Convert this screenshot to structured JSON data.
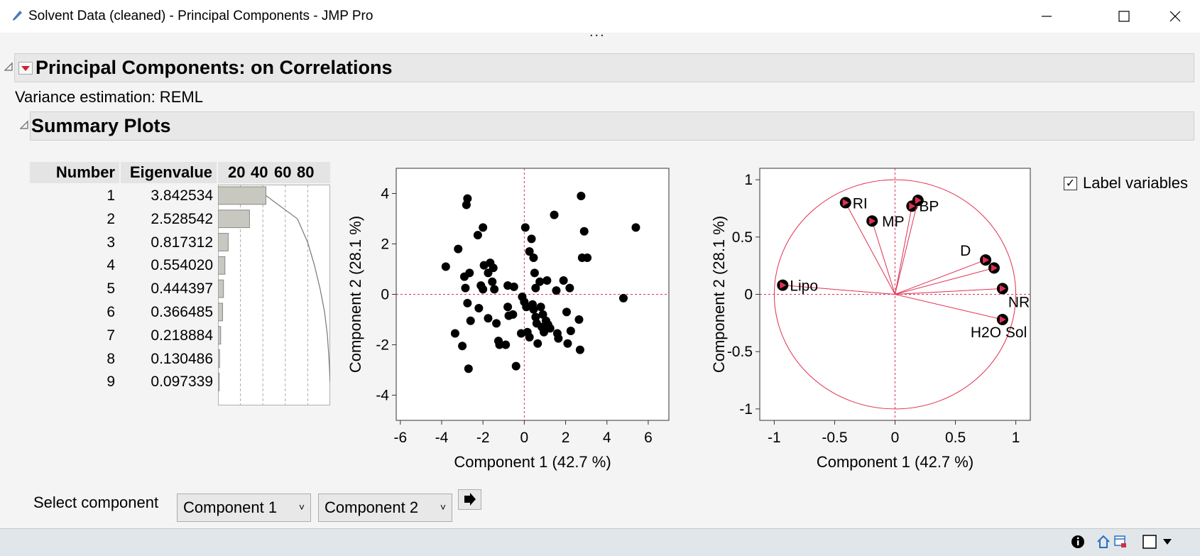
{
  "window": {
    "title": "Solvent Data (cleaned) - Principal Components - JMP Pro",
    "grip": "..."
  },
  "report": {
    "title": "Principal Components: on Correlations",
    "variance_estimation": "Variance estimation: REML",
    "summary_title": "Summary Plots"
  },
  "eigen_table": {
    "headers": {
      "number": "Number",
      "eigenvalue": "Eigenvalue"
    },
    "bar_ticks": [
      "20",
      "40",
      "60",
      "80"
    ],
    "rows": [
      {
        "number": "1",
        "eigenvalue": "3.842534",
        "percent": 42.7,
        "cum_percent": 42.7
      },
      {
        "number": "2",
        "eigenvalue": "2.528542",
        "percent": 28.1,
        "cum_percent": 70.8
      },
      {
        "number": "3",
        "eigenvalue": "0.817312",
        "percent": 9.1,
        "cum_percent": 79.9
      },
      {
        "number": "4",
        "eigenvalue": "0.554020",
        "percent": 6.2,
        "cum_percent": 86.0
      },
      {
        "number": "5",
        "eigenvalue": "0.444397",
        "percent": 4.9,
        "cum_percent": 91.0
      },
      {
        "number": "6",
        "eigenvalue": "0.366485",
        "percent": 4.1,
        "cum_percent": 95.0
      },
      {
        "number": "7",
        "eigenvalue": "0.218884",
        "percent": 2.4,
        "cum_percent": 97.5
      },
      {
        "number": "8",
        "eigenvalue": "0.130486",
        "percent": 1.4,
        "cum_percent": 98.9
      },
      {
        "number": "9",
        "eigenvalue": "0.097339",
        "percent": 1.1,
        "cum_percent": 100.0
      }
    ]
  },
  "label_variables": {
    "label": "Label variables",
    "checked": true
  },
  "select_component": {
    "label": "Select component",
    "x_value": "Component 1",
    "y_value": "Component 2"
  },
  "colors": {
    "accent": "#e03050",
    "marker": "#000000",
    "bar": "#c8c8c0"
  },
  "chart_data": [
    {
      "type": "scatter",
      "title": "",
      "xlabel": "Component 1  (42.7 %)",
      "ylabel": "Component 2  (28.1 %)",
      "xlim": [
        -6.2,
        7.0
      ],
      "ylim": [
        -5.0,
        5.0
      ],
      "xticks": [
        -6,
        -4,
        -2,
        0,
        2,
        4,
        6
      ],
      "yticks": [
        -4,
        -2,
        0,
        2,
        4
      ],
      "reference_lines": {
        "x": 0,
        "y": 0
      },
      "points": [
        [
          -3.8,
          1.1
        ],
        [
          -3.2,
          1.8
        ],
        [
          -3.35,
          -1.55
        ],
        [
          -3.0,
          -2.05
        ],
        [
          -2.75,
          3.8
        ],
        [
          -2.8,
          3.55
        ],
        [
          -2.9,
          0.7
        ],
        [
          -2.85,
          0.25
        ],
        [
          -2.75,
          -0.35
        ],
        [
          -2.65,
          0.85
        ],
        [
          -2.6,
          -1.05
        ],
        [
          -2.7,
          -2.95
        ],
        [
          -2.25,
          2.35
        ],
        [
          -2.0,
          2.65
        ],
        [
          -2.2,
          -0.55
        ],
        [
          -2.1,
          0.35
        ],
        [
          -2.0,
          0.2
        ],
        [
          -1.95,
          1.15
        ],
        [
          -1.75,
          0.85
        ],
        [
          -1.75,
          -0.95
        ],
        [
          -1.65,
          1.25
        ],
        [
          -1.55,
          0.5
        ],
        [
          -1.5,
          1.05
        ],
        [
          -1.45,
          0.2
        ],
        [
          -1.35,
          -1.15
        ],
        [
          -1.25,
          -1.85
        ],
        [
          -1.2,
          -2.0
        ],
        [
          -0.9,
          -2.0
        ],
        [
          -0.8,
          0.35
        ],
        [
          -0.8,
          -0.5
        ],
        [
          -0.75,
          -0.85
        ],
        [
          -0.55,
          -0.8
        ],
        [
          -0.5,
          0.3
        ],
        [
          -0.4,
          -2.85
        ],
        [
          -0.15,
          -1.55
        ],
        [
          -0.1,
          -0.1
        ],
        [
          0.0,
          -0.3
        ],
        [
          0.05,
          2.65
        ],
        [
          0.1,
          -0.5
        ],
        [
          0.15,
          -1.5
        ],
        [
          0.25,
          1.7
        ],
        [
          0.25,
          -1.7
        ],
        [
          0.35,
          2.2
        ],
        [
          0.4,
          -0.4
        ],
        [
          0.45,
          -0.6
        ],
        [
          0.45,
          1.45
        ],
        [
          0.5,
          0.85
        ],
        [
          0.55,
          -0.9
        ],
        [
          0.55,
          0.25
        ],
        [
          0.6,
          -1.15
        ],
        [
          0.65,
          -1.95
        ],
        [
          0.75,
          0.5
        ],
        [
          0.8,
          -0.5
        ],
        [
          0.85,
          -1.3
        ],
        [
          0.9,
          -0.8
        ],
        [
          0.95,
          -1.5
        ],
        [
          1.05,
          -1.05
        ],
        [
          1.1,
          0.55
        ],
        [
          1.15,
          -1.2
        ],
        [
          1.25,
          -1.35
        ],
        [
          1.45,
          3.15
        ],
        [
          1.55,
          0.15
        ],
        [
          1.6,
          -1.55
        ],
        [
          1.65,
          -1.75
        ],
        [
          1.9,
          0.55
        ],
        [
          2.05,
          -0.7
        ],
        [
          2.1,
          -1.95
        ],
        [
          2.2,
          0.25
        ],
        [
          2.25,
          -1.45
        ],
        [
          2.65,
          -1.0
        ],
        [
          2.7,
          -2.2
        ],
        [
          2.75,
          3.9
        ],
        [
          2.8,
          1.45
        ],
        [
          2.9,
          2.5
        ],
        [
          3.05,
          1.45
        ],
        [
          4.8,
          -0.15
        ],
        [
          5.4,
          2.65
        ]
      ]
    },
    {
      "type": "scatter",
      "title": "",
      "xlabel": "Component 1  (42.7 %)",
      "ylabel": "Component 2  (28.1 %)",
      "xlim": [
        -1.12,
        1.12
      ],
      "ylim": [
        -1.1,
        1.1
      ],
      "xticks": [
        -1.0,
        -0.5,
        0,
        0.5,
        1.0
      ],
      "yticks": [
        -1.0,
        -0.5,
        0,
        0.5,
        1.0
      ],
      "unit_circle": true,
      "reference_lines": {
        "x": 0,
        "y": 0
      },
      "loadings": [
        {
          "label": "Lipo",
          "x": -0.93,
          "y": 0.08
        },
        {
          "label": "RI",
          "x": -0.41,
          "y": 0.8
        },
        {
          "label": "MP",
          "x": -0.19,
          "y": 0.64
        },
        {
          "label": "BP",
          "x": 0.14,
          "y": 0.77
        },
        {
          "label": "",
          "x": 0.19,
          "y": 0.82
        },
        {
          "label": "D",
          "x": 0.75,
          "y": 0.3
        },
        {
          "label": "",
          "x": 0.82,
          "y": 0.23
        },
        {
          "label": "NR",
          "x": 0.89,
          "y": 0.05
        },
        {
          "label": "H2O Sol",
          "x": 0.89,
          "y": -0.22
        }
      ]
    }
  ]
}
